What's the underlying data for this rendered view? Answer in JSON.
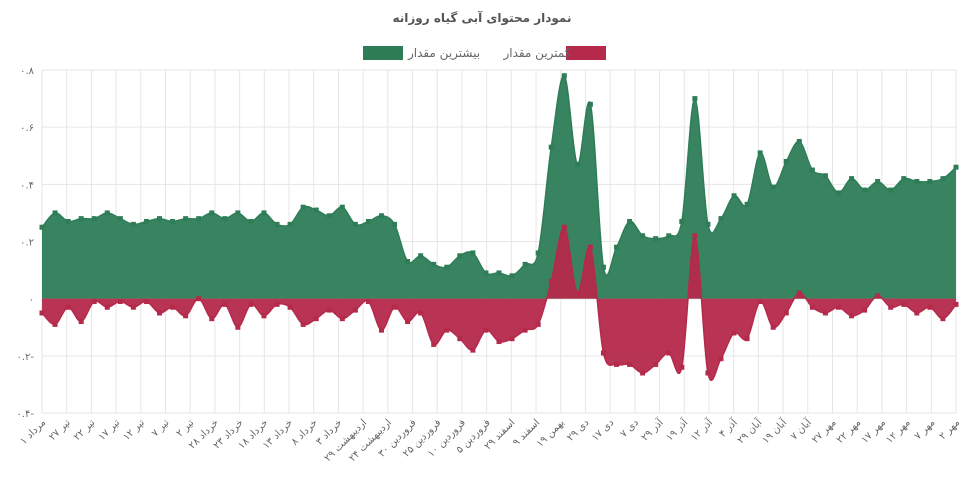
{
  "chart_data": {
    "type": "area",
    "title": "نمودار محتوای آبی گیاه روزانه",
    "legend_position": "top",
    "y_ticks": [
      "۰.۸",
      "۰.۶",
      "۰.۴",
      "۰.۲",
      "۰",
      "۰.۲-",
      "۰.۴-"
    ],
    "ylim": [
      -0.4,
      0.8
    ],
    "grid": true,
    "x_tick_labels": [
      "۱ مرداد",
      "۲۷ تیر",
      "۲۲ تیر",
      "۱۷ تیر",
      "۱۲ تیر",
      "۷ تیر",
      "۲ تیر",
      "۲۸ خرداد",
      "۲۳ خرداد",
      "۱۸ خرداد",
      "۱۳ خرداد",
      "۸ خرداد",
      "۳ خرداد",
      "۲۹ اردیبهشت",
      "۲۴ اردیبهشت",
      "۳۰ فروردین",
      "۲۵ فروردین",
      "۱۰ فروردین",
      "۵ فروردین",
      "۲۹ اسفند",
      "۹ اسفند",
      "۱۹ بهمن",
      "۲۹ دی",
      "۱۷ دی",
      "۷ دی",
      "۲۹ آذر",
      "۱۹ آذر",
      "۱۲ آذر",
      "۴ آذر",
      "۲۹ آبان",
      "۱۹ آبان",
      "۷ آبان",
      "۲۷ مهر",
      "۲۲ مهر",
      "۱۷ مهر",
      "۱۲ مهر",
      "۷ مهر",
      "۲ مهر"
    ],
    "series": [
      {
        "name": "بیشترین مقدار",
        "color": "#2e7d57",
        "values": [
          0.25,
          0.3,
          0.27,
          0.28,
          0.28,
          0.3,
          0.28,
          0.26,
          0.27,
          0.28,
          0.27,
          0.28,
          0.28,
          0.3,
          0.28,
          0.3,
          0.27,
          0.3,
          0.26,
          0.26,
          0.32,
          0.31,
          0.29,
          0.32,
          0.26,
          0.27,
          0.29,
          0.26,
          0.13,
          0.15,
          0.12,
          0.11,
          0.15,
          0.16,
          0.09,
          0.09,
          0.08,
          0.12,
          0.16,
          0.53,
          0.78,
          0.47,
          0.68,
          0.11,
          0.18,
          0.27,
          0.22,
          0.21,
          0.22,
          0.27,
          0.7,
          0.26,
          0.28,
          0.36,
          0.33,
          0.51,
          0.39,
          0.48,
          0.55,
          0.45,
          0.43,
          0.37,
          0.42,
          0.38,
          0.41,
          0.38,
          0.42,
          0.41,
          0.41,
          0.42,
          0.46
        ]
      },
      {
        "name": "کمترین مقدار",
        "color": "#b5294b",
        "values": [
          -0.05,
          -0.09,
          -0.03,
          -0.08,
          -0.01,
          -0.03,
          -0.01,
          -0.03,
          -0.01,
          -0.05,
          -0.03,
          -0.06,
          0,
          -0.07,
          -0.02,
          -0.1,
          -0.02,
          -0.06,
          -0.02,
          -0.03,
          -0.09,
          -0.07,
          -0.04,
          -0.07,
          -0.04,
          -0.01,
          -0.11,
          -0.03,
          -0.08,
          -0.05,
          -0.16,
          -0.11,
          -0.14,
          -0.18,
          -0.11,
          -0.15,
          -0.14,
          -0.11,
          -0.09,
          0.06,
          0.25,
          0.02,
          0.18,
          -0.19,
          -0.23,
          -0.23,
          -0.26,
          -0.23,
          -0.19,
          -0.24,
          0.22,
          -0.26,
          -0.21,
          -0.12,
          -0.14,
          -0.01,
          -0.1,
          -0.05,
          0.02,
          -0.03,
          -0.05,
          -0.03,
          -0.06,
          -0.04,
          0.01,
          -0.03,
          -0.02,
          -0.05,
          -0.03,
          -0.07,
          -0.02
        ]
      }
    ]
  }
}
